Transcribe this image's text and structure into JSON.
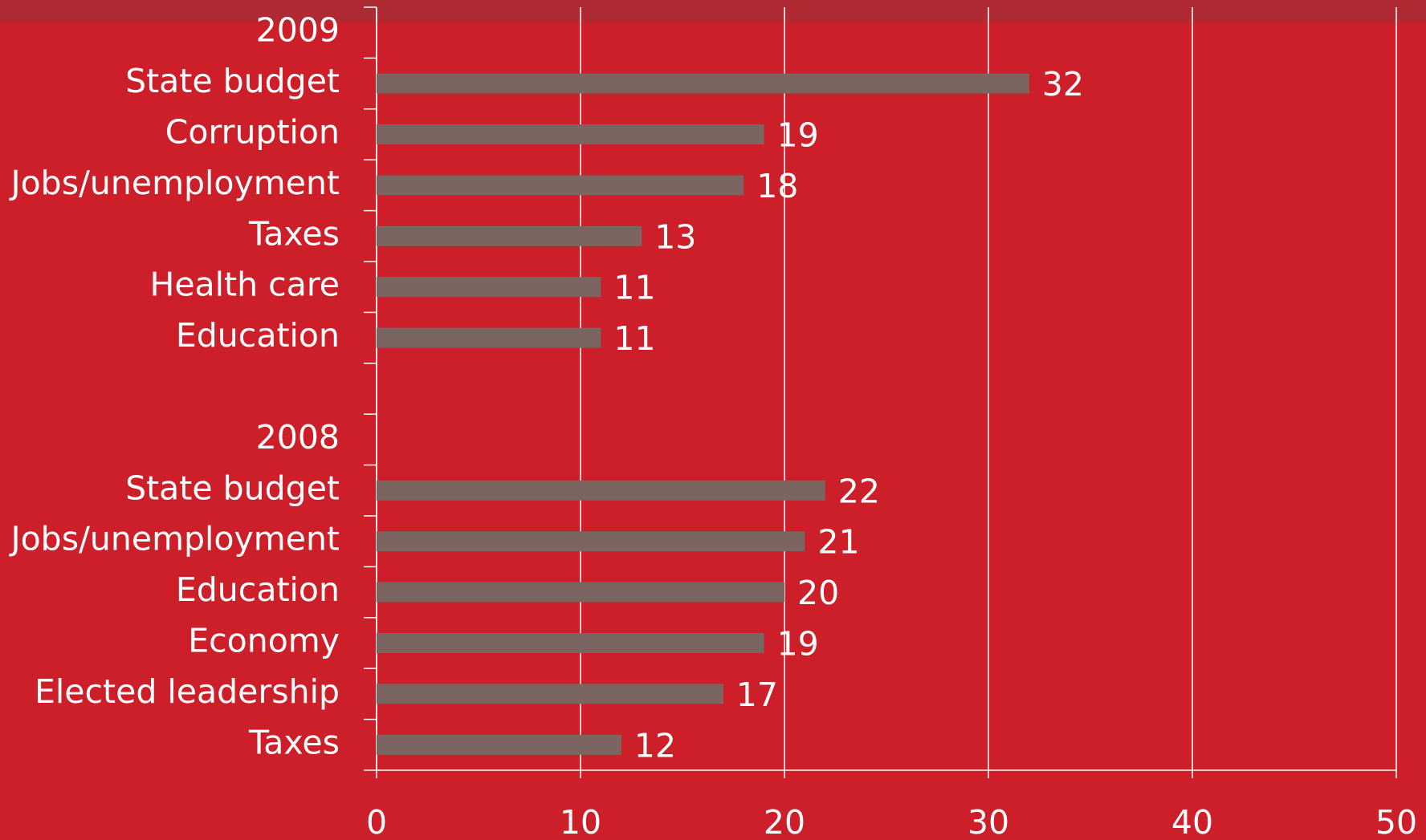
{
  "chart_data": {
    "type": "barh",
    "categories": [
      "2009",
      "State budget",
      "Corruption",
      "Jobs/unemployment",
      "Taxes",
      "Health care",
      "Education",
      null,
      "2008",
      "State budget",
      "Jobs/unemployment",
      "Education",
      "Economy",
      "Elected leadership",
      "Taxes"
    ],
    "values": [
      null,
      32,
      19,
      18,
      13,
      11,
      11,
      null,
      null,
      22,
      21,
      20,
      19,
      17,
      12
    ],
    "color": "#7b6560",
    "xlim": [
      0,
      50
    ],
    "xticks": [
      0,
      10,
      20,
      30,
      40,
      50
    ],
    "grid": true
  }
}
